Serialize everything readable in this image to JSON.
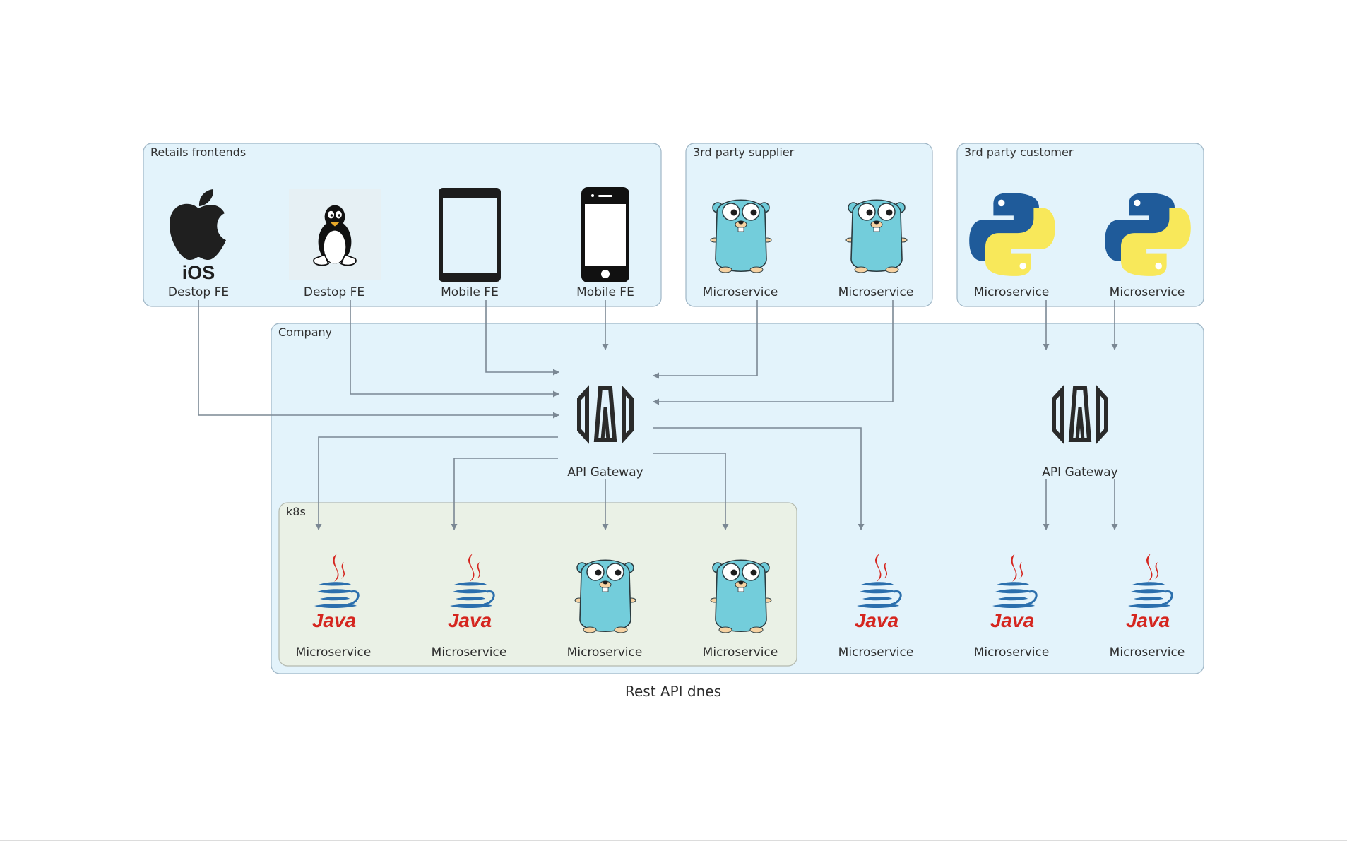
{
  "caption": "Rest API dnes",
  "colors": {
    "cluster_fill": "#e3f3fb",
    "cluster_stroke": "#9fb6c6",
    "k8s_fill": "#eaf1e6",
    "k8s_stroke": "#b3b9ae",
    "edge": "#7b8894"
  },
  "clusters": {
    "retail": {
      "label": "Retails frontends"
    },
    "supplier": {
      "label": "3rd party supplier"
    },
    "customer": {
      "label": "3rd party customer"
    },
    "company": {
      "label": "Company"
    },
    "k8s": {
      "label": "k8s"
    }
  },
  "nodes": {
    "ios_fe": {
      "label": "Destop FE",
      "icon": "apple-ios-icon",
      "icon_text": "iOS"
    },
    "linux_fe": {
      "label": "Destop FE",
      "icon": "linux-tux-icon"
    },
    "tablet_fe": {
      "label": "Mobile FE",
      "icon": "tablet-icon"
    },
    "phone_fe": {
      "label": "Mobile FE",
      "icon": "smartphone-icon"
    },
    "sup_ms1": {
      "label": "Microservice",
      "icon": "go-gopher-icon"
    },
    "sup_ms2": {
      "label": "Microservice",
      "icon": "go-gopher-icon"
    },
    "cust_ms1": {
      "label": "Microservice",
      "icon": "python-icon"
    },
    "cust_ms2": {
      "label": "Microservice",
      "icon": "python-icon"
    },
    "gateway1": {
      "label": "API Gateway",
      "icon": "api-gateway-icon"
    },
    "gateway2": {
      "label": "API Gateway",
      "icon": "api-gateway-icon"
    },
    "k8s_ms1": {
      "label": "Microservice",
      "icon": "java-icon"
    },
    "k8s_ms2": {
      "label": "Microservice",
      "icon": "java-icon"
    },
    "k8s_ms3": {
      "label": "Microservice",
      "icon": "go-gopher-icon"
    },
    "k8s_ms4": {
      "label": "Microservice",
      "icon": "go-gopher-icon"
    },
    "comp_ms1": {
      "label": "Microservice",
      "icon": "java-icon"
    },
    "comp_ms2": {
      "label": "Microservice",
      "icon": "java-icon"
    },
    "comp_ms3": {
      "label": "Microservice",
      "icon": "java-icon"
    }
  },
  "java_wordmark": "Java",
  "edges": [
    {
      "from": "phone_fe",
      "to": "gateway1"
    },
    {
      "from": "tablet_fe",
      "to": "gateway1"
    },
    {
      "from": "linux_fe",
      "to": "gateway1"
    },
    {
      "from": "ios_fe",
      "to": "gateway1"
    },
    {
      "from": "sup_ms1",
      "to": "gateway1"
    },
    {
      "from": "sup_ms2",
      "to": "gateway1"
    },
    {
      "from": "gateway1",
      "to": "k8s_ms1"
    },
    {
      "from": "gateway1",
      "to": "k8s_ms2"
    },
    {
      "from": "gateway1",
      "to": "k8s_ms3"
    },
    {
      "from": "gateway1",
      "to": "k8s_ms4"
    },
    {
      "from": "gateway1",
      "to": "comp_ms1"
    },
    {
      "from": "cust_ms1",
      "to": "gateway2"
    },
    {
      "from": "cust_ms2",
      "to": "gateway2"
    },
    {
      "from": "gateway2",
      "to": "comp_ms2"
    },
    {
      "from": "gateway2",
      "to": "comp_ms3"
    }
  ]
}
